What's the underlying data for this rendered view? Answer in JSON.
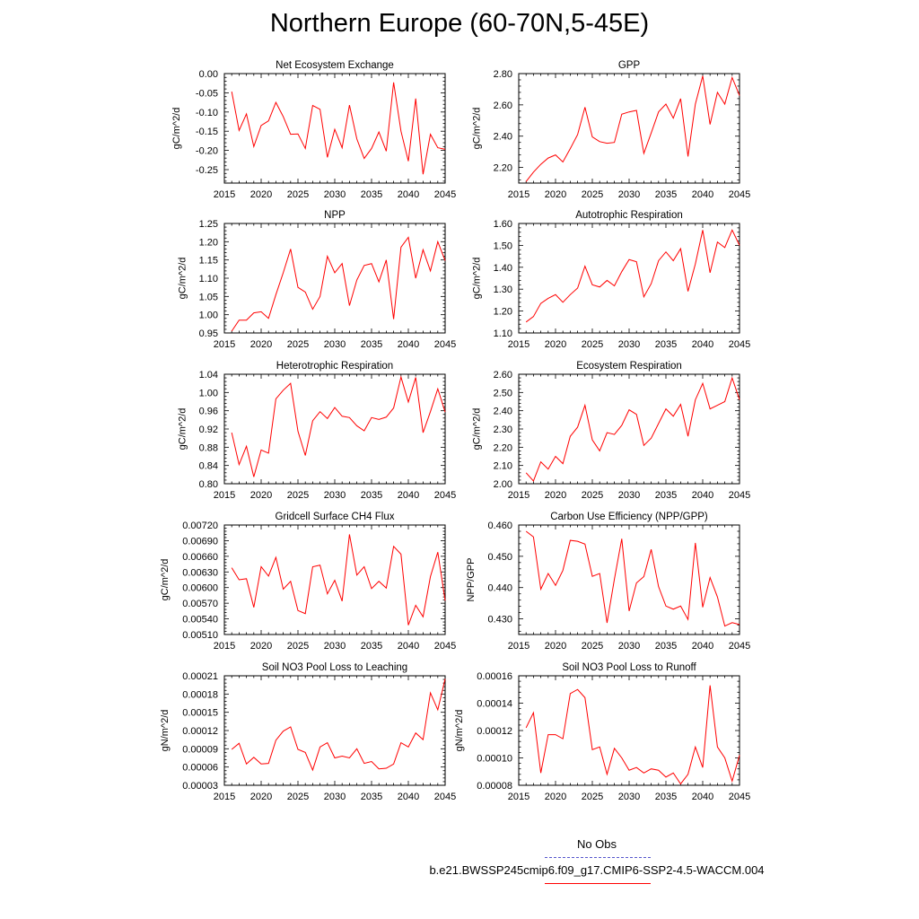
{
  "title": "Northern Europe (60-70N,5-45E)",
  "legend": {
    "obs_label": "No Obs",
    "obs_color": "#5555cc",
    "model_label": "b.e21.BWSSP245cmip6.f09_g17.CMIP6-SSP2-4.5-WACCM.004",
    "model_color": "#ff0000"
  },
  "chart_data": [
    {
      "type": "line",
      "title": "Net Ecosystem Exchange",
      "ylabel": "gC/m^2/d",
      "xlim": [
        2015,
        2045
      ],
      "ylim": [
        -0.285,
        0.0
      ],
      "xticks": [
        2015,
        2020,
        2025,
        2030,
        2035,
        2040,
        2045
      ],
      "xtick_labels": [
        "2015",
        "2020",
        "2025",
        "2030",
        "2035",
        "2040",
        "2045"
      ],
      "yticks": [
        0.0,
        -0.05,
        -0.1,
        -0.15,
        -0.2,
        -0.25
      ],
      "ytick_labels": [
        "0.00",
        "-0.05",
        "-0.10",
        "-0.15",
        "-0.20",
        "-0.25"
      ],
      "x": [
        2016,
        2017,
        2018,
        2019,
        2020,
        2021,
        2022,
        2023,
        2024,
        2025,
        2026,
        2027,
        2028,
        2029,
        2030,
        2031,
        2032,
        2033,
        2034,
        2035,
        2036,
        2037,
        2038,
        2039,
        2040,
        2041,
        2042,
        2043,
        2044,
        2045
      ],
      "series": [
        {
          "values": [
            -0.047,
            -0.148,
            -0.105,
            -0.19,
            -0.135,
            -0.123,
            -0.075,
            -0.112,
            -0.158,
            -0.157,
            -0.195,
            -0.083,
            -0.093,
            -0.218,
            -0.145,
            -0.193,
            -0.082,
            -0.17,
            -0.221,
            -0.195,
            -0.152,
            -0.202,
            -0.023,
            -0.15,
            -0.228,
            -0.065,
            -0.262,
            -0.158,
            -0.193,
            -0.197
          ]
        }
      ]
    },
    {
      "type": "line",
      "title": "GPP",
      "ylabel": "gC/m^2/d",
      "xlim": [
        2015,
        2045
      ],
      "ylim": [
        2.1,
        2.8
      ],
      "xticks": [
        2015,
        2020,
        2025,
        2030,
        2035,
        2040,
        2045
      ],
      "xtick_labels": [
        "2015",
        "2020",
        "2025",
        "2030",
        "2035",
        "2040",
        "2045"
      ],
      "yticks": [
        2.2,
        2.4,
        2.6,
        2.8
      ],
      "ytick_labels": [
        "2.20",
        "2.40",
        "2.60",
        "2.80"
      ],
      "x": [
        2016,
        2017,
        2018,
        2019,
        2020,
        2021,
        2022,
        2023,
        2024,
        2025,
        2026,
        2027,
        2028,
        2029,
        2030,
        2031,
        2032,
        2033,
        2034,
        2035,
        2036,
        2037,
        2038,
        2039,
        2040,
        2041,
        2042,
        2043,
        2044,
        2045
      ],
      "series": [
        {
          "values": [
            2.11,
            2.17,
            2.22,
            2.26,
            2.28,
            2.235,
            2.32,
            2.41,
            2.585,
            2.395,
            2.365,
            2.355,
            2.36,
            2.54,
            2.555,
            2.565,
            2.29,
            2.42,
            2.555,
            2.605,
            2.515,
            2.64,
            2.27,
            2.605,
            2.785,
            2.475,
            2.68,
            2.605,
            2.775,
            2.66
          ]
        }
      ]
    },
    {
      "type": "line",
      "title": "NPP",
      "ylabel": "gC/m^2/d",
      "xlim": [
        2015,
        2045
      ],
      "ylim": [
        0.95,
        1.25
      ],
      "xticks": [
        2015,
        2020,
        2025,
        2030,
        2035,
        2040,
        2045
      ],
      "xtick_labels": [
        "2015",
        "2020",
        "2025",
        "2030",
        "2035",
        "2040",
        "2045"
      ],
      "yticks": [
        0.95,
        1.0,
        1.05,
        1.1,
        1.15,
        1.2,
        1.25
      ],
      "ytick_labels": [
        "0.95",
        "1.00",
        "1.05",
        "1.10",
        "1.15",
        "1.20",
        "1.25"
      ],
      "x": [
        2016,
        2017,
        2018,
        2019,
        2020,
        2021,
        2022,
        2023,
        2024,
        2025,
        2026,
        2027,
        2028,
        2029,
        2030,
        2031,
        2032,
        2033,
        2034,
        2035,
        2036,
        2037,
        2038,
        2039,
        2040,
        2041,
        2042,
        2043,
        2044,
        2045
      ],
      "series": [
        {
          "values": [
            0.955,
            0.985,
            0.985,
            1.005,
            1.008,
            0.99,
            1.055,
            1.115,
            1.18,
            1.075,
            1.062,
            1.015,
            1.05,
            1.16,
            1.115,
            1.14,
            1.025,
            1.095,
            1.135,
            1.14,
            1.09,
            1.15,
            0.988,
            1.185,
            1.212,
            1.1,
            1.178,
            1.12,
            1.2,
            1.148
          ]
        }
      ]
    },
    {
      "type": "line",
      "title": "Autotrophic Respiration",
      "ylabel": "gC/m^2/d",
      "xlim": [
        2015,
        2045
      ],
      "ylim": [
        1.1,
        1.6
      ],
      "xticks": [
        2015,
        2020,
        2025,
        2030,
        2035,
        2040,
        2045
      ],
      "xtick_labels": [
        "2015",
        "2020",
        "2025",
        "2030",
        "2035",
        "2040",
        "2045"
      ],
      "yticks": [
        1.1,
        1.2,
        1.3,
        1.4,
        1.5,
        1.6
      ],
      "ytick_labels": [
        "1.10",
        "1.20",
        "1.30",
        "1.40",
        "1.50",
        "1.60"
      ],
      "x": [
        2016,
        2017,
        2018,
        2019,
        2020,
        2021,
        2022,
        2023,
        2024,
        2025,
        2026,
        2027,
        2028,
        2029,
        2030,
        2031,
        2032,
        2033,
        2034,
        2035,
        2036,
        2037,
        2038,
        2039,
        2040,
        2041,
        2042,
        2043,
        2044,
        2045
      ],
      "series": [
        {
          "values": [
            1.15,
            1.175,
            1.235,
            1.258,
            1.275,
            1.24,
            1.275,
            1.305,
            1.405,
            1.32,
            1.31,
            1.34,
            1.315,
            1.38,
            1.435,
            1.425,
            1.265,
            1.325,
            1.43,
            1.47,
            1.43,
            1.485,
            1.29,
            1.415,
            1.57,
            1.375,
            1.515,
            1.49,
            1.57,
            1.5
          ]
        }
      ]
    },
    {
      "type": "line",
      "title": "Heterotrophic Respiration",
      "ylabel": "gC/m^2/d",
      "xlim": [
        2015,
        2045
      ],
      "ylim": [
        0.8,
        1.04
      ],
      "xticks": [
        2015,
        2020,
        2025,
        2030,
        2035,
        2040,
        2045
      ],
      "xtick_labels": [
        "2015",
        "2020",
        "2025",
        "2030",
        "2035",
        "2040",
        "2045"
      ],
      "yticks": [
        0.8,
        0.84,
        0.88,
        0.92,
        0.96,
        1.0,
        1.04
      ],
      "ytick_labels": [
        "0.80",
        "0.84",
        "0.88",
        "0.92",
        "0.96",
        "1.00",
        "1.04"
      ],
      "x": [
        2016,
        2017,
        2018,
        2019,
        2020,
        2021,
        2022,
        2023,
        2024,
        2025,
        2026,
        2027,
        2028,
        2029,
        2030,
        2031,
        2032,
        2033,
        2034,
        2035,
        2036,
        2037,
        2038,
        2039,
        2040,
        2041,
        2042,
        2043,
        2044,
        2045
      ],
      "series": [
        {
          "values": [
            0.912,
            0.842,
            0.882,
            0.815,
            0.874,
            0.867,
            0.986,
            1.005,
            1.02,
            0.915,
            0.862,
            0.938,
            0.958,
            0.943,
            0.967,
            0.948,
            0.945,
            0.927,
            0.916,
            0.945,
            0.941,
            0.946,
            0.966,
            1.034,
            0.979,
            1.033,
            0.912,
            0.958,
            1.008,
            0.957
          ]
        }
      ]
    },
    {
      "type": "line",
      "title": "Ecosystem Respiration",
      "ylabel": "gC/m^2/d",
      "xlim": [
        2015,
        2045
      ],
      "ylim": [
        2.0,
        2.6
      ],
      "xticks": [
        2015,
        2020,
        2025,
        2030,
        2035,
        2040,
        2045
      ],
      "xtick_labels": [
        "2015",
        "2020",
        "2025",
        "2030",
        "2035",
        "2040",
        "2045"
      ],
      "yticks": [
        2.0,
        2.1,
        2.2,
        2.3,
        2.4,
        2.5,
        2.6
      ],
      "ytick_labels": [
        "2.00",
        "2.10",
        "2.20",
        "2.30",
        "2.40",
        "2.50",
        "2.60"
      ],
      "x": [
        2016,
        2017,
        2018,
        2019,
        2020,
        2021,
        2022,
        2023,
        2024,
        2025,
        2026,
        2027,
        2028,
        2029,
        2030,
        2031,
        2032,
        2033,
        2034,
        2035,
        2036,
        2037,
        2038,
        2039,
        2040,
        2041,
        2042,
        2043,
        2044,
        2045
      ],
      "series": [
        {
          "values": [
            2.06,
            2.015,
            2.12,
            2.08,
            2.15,
            2.11,
            2.26,
            2.31,
            2.43,
            2.24,
            2.18,
            2.28,
            2.27,
            2.32,
            2.405,
            2.38,
            2.21,
            2.25,
            2.33,
            2.41,
            2.37,
            2.435,
            2.26,
            2.46,
            2.55,
            2.41,
            2.43,
            2.45,
            2.58,
            2.46
          ]
        }
      ]
    },
    {
      "type": "line",
      "title": "Gridcell Surface CH4 Flux",
      "ylabel": "gC/m^2/d",
      "xlim": [
        2015,
        2045
      ],
      "ylim": [
        0.0051,
        0.0072
      ],
      "xticks": [
        2015,
        2020,
        2025,
        2030,
        2035,
        2040,
        2045
      ],
      "xtick_labels": [
        "2015",
        "2020",
        "2025",
        "2030",
        "2035",
        "2040",
        "2045"
      ],
      "yticks": [
        0.0051,
        0.0054,
        0.0057,
        0.006,
        0.0063,
        0.0066,
        0.0069,
        0.0072
      ],
      "ytick_labels": [
        "0.00510",
        "0.00540",
        "0.00570",
        "0.00600",
        "0.00630",
        "0.00660",
        "0.00690",
        "0.00720"
      ],
      "x": [
        2016,
        2017,
        2018,
        2019,
        2020,
        2021,
        2022,
        2023,
        2024,
        2025,
        2026,
        2027,
        2028,
        2029,
        2030,
        2031,
        2032,
        2033,
        2034,
        2035,
        2036,
        2037,
        2038,
        2039,
        2040,
        2041,
        2042,
        2043,
        2044,
        2045
      ],
      "series": [
        {
          "values": [
            0.00638,
            0.00615,
            0.00617,
            0.00562,
            0.0064,
            0.00622,
            0.00658,
            0.00597,
            0.00612,
            0.00556,
            0.0055,
            0.0064,
            0.00643,
            0.00588,
            0.00614,
            0.00574,
            0.00702,
            0.00624,
            0.0064,
            0.00598,
            0.00612,
            0.00599,
            0.00679,
            0.00664,
            0.00528,
            0.00566,
            0.00544,
            0.00621,
            0.00668,
            0.00575
          ]
        }
      ]
    },
    {
      "type": "line",
      "title": "Carbon Use Efficiency (NPP/GPP)",
      "ylabel": "NPP/GPP",
      "xlim": [
        2015,
        2045
      ],
      "ylim": [
        0.425,
        0.46
      ],
      "xticks": [
        2015,
        2020,
        2025,
        2030,
        2035,
        2040,
        2045
      ],
      "xtick_labels": [
        "2015",
        "2020",
        "2025",
        "2030",
        "2035",
        "2040",
        "2045"
      ],
      "yticks": [
        0.43,
        0.44,
        0.45,
        0.46
      ],
      "ytick_labels": [
        "0.430",
        "0.440",
        "0.450",
        "0.460"
      ],
      "x": [
        2016,
        2017,
        2018,
        2019,
        2020,
        2021,
        2022,
        2023,
        2024,
        2025,
        2026,
        2027,
        2028,
        2029,
        2030,
        2031,
        2032,
        2033,
        2034,
        2035,
        2036,
        2037,
        2038,
        2039,
        2040,
        2041,
        2042,
        2043,
        2044,
        2045
      ],
      "series": [
        {
          "values": [
            0.458,
            0.4562,
            0.4395,
            0.4445,
            0.4407,
            0.4455,
            0.4551,
            0.4548,
            0.4539,
            0.4436,
            0.4445,
            0.4287,
            0.4427,
            0.4556,
            0.4325,
            0.4415,
            0.4435,
            0.4522,
            0.4403,
            0.4341,
            0.4331,
            0.4341,
            0.4298,
            0.4543,
            0.4337,
            0.4432,
            0.437,
            0.4277,
            0.4288,
            0.4282
          ]
        }
      ]
    },
    {
      "type": "line",
      "title": "Soil NO3 Pool Loss to Leaching",
      "ylabel": "gN/m^2/d",
      "xlim": [
        2015,
        2045
      ],
      "ylim": [
        3e-05,
        0.00021
      ],
      "xticks": [
        2015,
        2020,
        2025,
        2030,
        2035,
        2040,
        2045
      ],
      "xtick_labels": [
        "2015",
        "2020",
        "2025",
        "2030",
        "2035",
        "2040",
        "2045"
      ],
      "yticks": [
        3e-05,
        6e-05,
        9e-05,
        0.00012,
        0.00015,
        0.00018,
        0.00021
      ],
      "ytick_labels": [
        "0.00003",
        "0.00006",
        "0.00009",
        "0.00012",
        "0.00015",
        "0.00018",
        "0.00021"
      ],
      "x": [
        2016,
        2017,
        2018,
        2019,
        2020,
        2021,
        2022,
        2023,
        2024,
        2025,
        2026,
        2027,
        2028,
        2029,
        2030,
        2031,
        2032,
        2033,
        2034,
        2035,
        2036,
        2037,
        2038,
        2039,
        2040,
        2041,
        2042,
        2043,
        2044,
        2045
      ],
      "series": [
        {
          "values": [
            8.9e-05,
            9.9e-05,
            6.5e-05,
            7.6e-05,
            6.5e-05,
            6.6e-05,
            0.000104,
            0.000119,
            0.000126,
            8.9e-05,
            8.4e-05,
            5.5e-05,
            9.3e-05,
            0.0001,
            7.5e-05,
            7.8e-05,
            7.5e-05,
            9e-05,
            6.6e-05,
            6.9e-05,
            5.7e-05,
            5.8e-05,
            6.5e-05,
            0.0001,
            9.3e-05,
            0.000116,
            0.000105,
            0.000182,
            0.000154,
            0.000205
          ]
        }
      ]
    },
    {
      "type": "line",
      "title": "Soil NO3 Pool Loss to Runoff",
      "ylabel": "gN/m^2/d",
      "xlim": [
        2015,
        2045
      ],
      "ylim": [
        8e-05,
        0.00016
      ],
      "xticks": [
        2015,
        2020,
        2025,
        2030,
        2035,
        2040,
        2045
      ],
      "xtick_labels": [
        "2015",
        "2020",
        "2025",
        "2030",
        "2035",
        "2040",
        "2045"
      ],
      "yticks": [
        8e-05,
        0.0001,
        0.00012,
        0.00014,
        0.00016
      ],
      "ytick_labels": [
        "0.00008",
        "0.00010",
        "0.00012",
        "0.00014",
        "0.00016"
      ],
      "x": [
        2016,
        2017,
        2018,
        2019,
        2020,
        2021,
        2022,
        2023,
        2024,
        2025,
        2026,
        2027,
        2028,
        2029,
        2030,
        2031,
        2032,
        2033,
        2034,
        2035,
        2036,
        2037,
        2038,
        2039,
        2040,
        2041,
        2042,
        2043,
        2044,
        2045
      ],
      "series": [
        {
          "values": [
            0.000122,
            0.000133,
            8.9e-05,
            0.000117,
            0.000117,
            0.000114,
            0.000147,
            0.00015,
            0.000144,
            0.000106,
            0.000108,
            8.8e-05,
            0.000107,
            0.0001,
            9.1e-05,
            9.3e-05,
            8.9e-05,
            9.2e-05,
            9.1e-05,
            8.6e-05,
            8.9e-05,
            8.1e-05,
            8.8e-05,
            0.000108,
            9.3e-05,
            0.000153,
            0.000108,
            0.0001,
            8.3e-05,
            0.000102
          ]
        }
      ]
    }
  ]
}
